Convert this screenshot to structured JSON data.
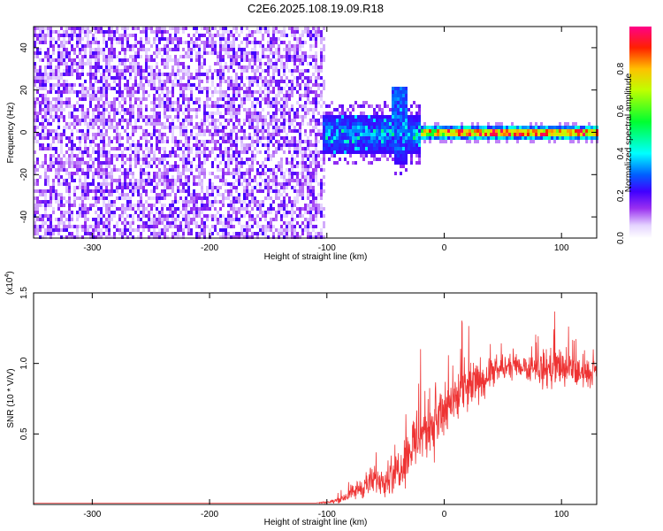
{
  "chart_data": [
    {
      "type": "heatmap",
      "title": "C2E6.2025.108.19.09.R18",
      "xlabel": "Height of straight line (km)",
      "ylabel": "Frequency (Hz)",
      "xlim": [
        -350,
        130
      ],
      "ylim": [
        -50,
        50
      ],
      "xticks": [
        -300,
        -200,
        -100,
        0,
        100
      ],
      "yticks": [
        -40,
        -20,
        0,
        20,
        40
      ],
      "colorbar": {
        "label": "Normalized spectral amplitude",
        "range": [
          0,
          1
        ],
        "ticks": [
          "0.0",
          "0.2",
          "0.4",
          "0.6",
          "0.8"
        ]
      },
      "regions": [
        {
          "x": [
            -350,
            -105
          ],
          "description": "broadband noise, low amplitude across all frequencies"
        },
        {
          "x": [
            -105,
            -20
          ],
          "frequency_center": 0,
          "frequency_halfwidth": 10,
          "peak_at": -38,
          "peak_frequency": 20
        },
        {
          "x": [
            -20,
            130
          ],
          "frequency_center": 1,
          "frequency_halfwidth": 2,
          "amplitude": "high"
        }
      ],
      "colors": [
        "#ffffff",
        "#e8d8ff",
        "#a070f0",
        "#7a00e0",
        "#2200ff",
        "#00e0ff",
        "#00ff40",
        "#ffee00",
        "#ff0000",
        "#ff00aa"
      ]
    },
    {
      "type": "line",
      "xlabel": "Height of straight line (km)",
      "ylabel": "SNR (10 * V/V)",
      "multiplier": "(x10^4)",
      "xlim": [
        -350,
        130
      ],
      "ylim": [
        0,
        1.5
      ],
      "xticks": [
        -300,
        -200,
        -100,
        0,
        100
      ],
      "yticks": [
        0.5,
        1.0,
        1.5
      ],
      "series": [
        {
          "color": "#ee3333",
          "x": [
            -350,
            -300,
            -250,
            -200,
            -150,
            -110,
            -95,
            -85,
            -75,
            -65,
            -55,
            -45,
            -35,
            -25,
            -15,
            -5,
            5,
            15,
            25,
            35,
            45,
            55,
            65,
            75,
            85,
            95,
            105,
            115,
            125,
            130
          ],
          "values": [
            0.01,
            0.01,
            0.01,
            0.01,
            0.01,
            0.01,
            0.02,
            0.05,
            0.1,
            0.15,
            0.18,
            0.2,
            0.3,
            0.45,
            0.55,
            0.6,
            0.7,
            0.78,
            0.85,
            0.9,
            0.95,
            0.97,
            0.98,
            0.97,
            0.96,
            0.98,
            0.95,
            0.93,
            0.92,
            0.95
          ],
          "noise": [
            0,
            0,
            0,
            0,
            0,
            0,
            0.02,
            0.05,
            0.1,
            0.15,
            0.15,
            0.2,
            0.25,
            0.35,
            0.35,
            0.35,
            0.3,
            0.3,
            0.25,
            0.2,
            0.15,
            0.12,
            0.12,
            0.15,
            0.2,
            0.25,
            0.2,
            0.15,
            0.12,
            0.1
          ]
        }
      ]
    }
  ]
}
